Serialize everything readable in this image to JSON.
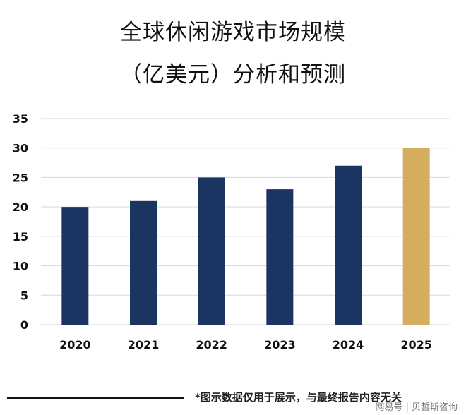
{
  "title_line1": "全球休闲游戏市场规模",
  "title_line2": "（亿美元）分析和预测",
  "footnote": "*图示数据仅用于展示，与最终报告内容无关",
  "source": "网易号 | 贝哲斯咨询",
  "colors": {
    "bar": "#1c3461",
    "highlight": "#d4ae5e",
    "grid": "#d9d9d9",
    "text": "#111111"
  },
  "chart_data": {
    "type": "bar",
    "title": "全球休闲游戏市场规模（亿美元）分析和预测",
    "categories": [
      "2020",
      "2021",
      "2022",
      "2023",
      "2024",
      "2025"
    ],
    "values": [
      20,
      21,
      25,
      23,
      27,
      30
    ],
    "highlight_index": 5,
    "xlabel": "",
    "ylabel": "",
    "ylim": [
      0,
      35
    ],
    "yticks": [
      0,
      5,
      10,
      15,
      20,
      25,
      30,
      35
    ],
    "grid": true,
    "legend": "none"
  }
}
